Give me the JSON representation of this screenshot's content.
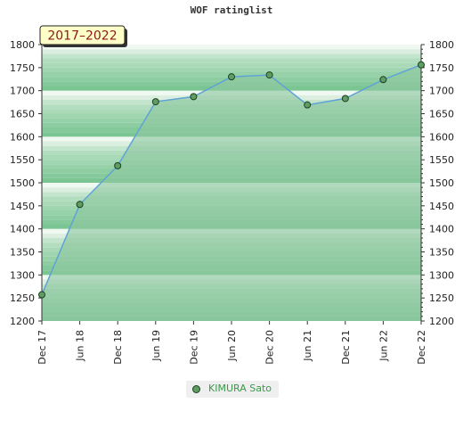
{
  "chart_data": {
    "type": "area",
    "title": "WOF ratinglist",
    "badge": "2017–2022",
    "x": [
      "Dec 17",
      "Jun 18",
      "Dec 18",
      "Jun 19",
      "Dec 19",
      "Jun 20",
      "Dec 20",
      "Jun 21",
      "Dec 21",
      "Jun 22",
      "Dec 22"
    ],
    "series": [
      {
        "name": "KIMURA Sato",
        "values": [
          1257,
          1453,
          1537,
          1676,
          1687,
          1730,
          1734,
          1669,
          1683,
          1724,
          1756
        ]
      }
    ],
    "ylim": [
      1200,
      1800
    ],
    "yticks": [
      1200,
      1250,
      1300,
      1350,
      1400,
      1450,
      1500,
      1550,
      1600,
      1650,
      1700,
      1750,
      1800
    ],
    "grid": true,
    "legend_position": "bottom",
    "colors": {
      "fill": "#8fc79f",
      "line": "#5fa3d6",
      "marker": "#5e9e62",
      "badge_bg": "#ffffc8",
      "badge_text": "#8b1a1a",
      "band_light": "#f0f8f2",
      "band_dark": "#7bc592",
      "legend_text": "#3a9a4a"
    }
  }
}
